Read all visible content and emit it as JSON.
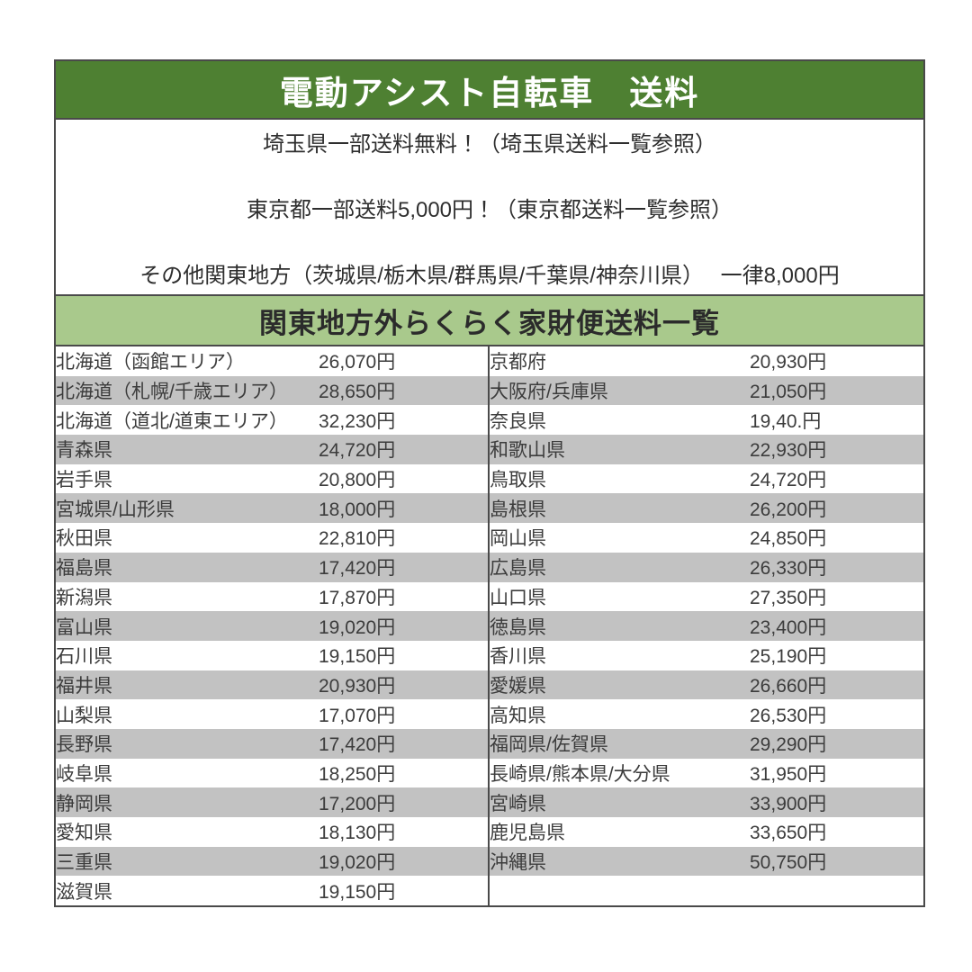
{
  "title": "電動アシスト自転車　送料",
  "notes": {
    "line1": "埼玉県一部送料無料！（埼玉県送料一覧参照）",
    "line2": "東京都一部送料5,000円！（東京都送料一覧参照）",
    "line3": "その他関東地方（茨城県/栃木県/群馬県/千葉県/神奈川県）　 一律8,000円"
  },
  "subheader": "関東地方外らくらく家財便送料一覧",
  "colors": {
    "header_green": "#4e8032",
    "subheader_green": "#a9c98c",
    "stripe_gray": "#c2c2c2",
    "border_dark": "#4a4a4a"
  },
  "fee_table": {
    "rows": [
      {
        "left_region": "北海道（函館エリア）",
        "left_price": "26,070円",
        "right_region": "京都府",
        "right_price": "20,930円"
      },
      {
        "left_region": "北海道（札幌/千歳エリア）",
        "left_price": "28,650円",
        "right_region": "大阪府/兵庫県",
        "right_price": "21,050円"
      },
      {
        "left_region": "北海道（道北/道東エリア）",
        "left_price": "32,230円",
        "right_region": "奈良県",
        "right_price": "19,40.円"
      },
      {
        "left_region": "青森県",
        "left_price": "24,720円",
        "right_region": "和歌山県",
        "right_price": "22,930円"
      },
      {
        "left_region": "岩手県",
        "left_price": "20,800円",
        "right_region": "鳥取県",
        "right_price": "24,720円"
      },
      {
        "left_region": "宮城県/山形県",
        "left_price": "18,000円",
        "right_region": "島根県",
        "right_price": "26,200円"
      },
      {
        "left_region": "秋田県",
        "left_price": "22,810円",
        "right_region": "岡山県",
        "right_price": "24,850円"
      },
      {
        "left_region": "福島県",
        "left_price": "17,420円",
        "right_region": "広島県",
        "right_price": "26,330円"
      },
      {
        "left_region": "新潟県",
        "left_price": "17,870円",
        "right_region": "山口県",
        "right_price": "27,350円"
      },
      {
        "left_region": "富山県",
        "left_price": "19,020円",
        "right_region": "徳島県",
        "right_price": "23,400円"
      },
      {
        "left_region": "石川県",
        "left_price": "19,150円",
        "right_region": "香川県",
        "right_price": "25,190円"
      },
      {
        "left_region": "福井県",
        "left_price": "20,930円",
        "right_region": "愛媛県",
        "right_price": "26,660円"
      },
      {
        "left_region": "山梨県",
        "left_price": "17,070円",
        "right_region": "高知県",
        "right_price": "26,530円"
      },
      {
        "left_region": "長野県",
        "left_price": "17,420円",
        "right_region": "福岡県/佐賀県",
        "right_price": "29,290円"
      },
      {
        "left_region": "岐阜県",
        "left_price": "18,250円",
        "right_region": "長崎県/熊本県/大分県",
        "right_price": "31,950円"
      },
      {
        "left_region": "静岡県",
        "left_price": "17,200円",
        "right_region": "宮崎県",
        "right_price": "33,900円"
      },
      {
        "left_region": "愛知県",
        "left_price": "18,130円",
        "right_region": "鹿児島県",
        "right_price": "33,650円"
      },
      {
        "left_region": "三重県",
        "left_price": "19,020円",
        "right_region": "沖縄県",
        "right_price": "50,750円"
      },
      {
        "left_region": "滋賀県",
        "left_price": "19,150円",
        "right_region": "",
        "right_price": ""
      }
    ]
  }
}
